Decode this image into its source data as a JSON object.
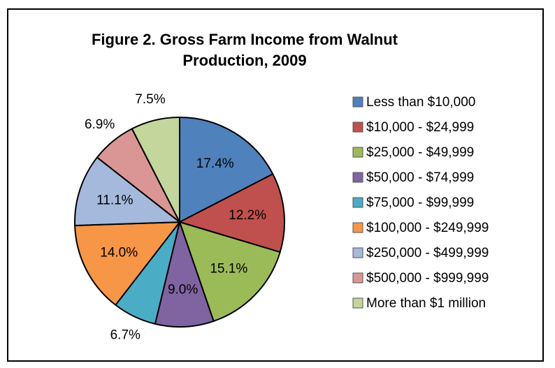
{
  "chart_data": {
    "type": "pie",
    "title": "Figure 2. Gross Farm Income from Walnut Production, 2009",
    "categories": [
      "Less than $10,000",
      "$10,000 - $24,999",
      "$25,000 - $49,999",
      "$50,000 - $74,999",
      "$75,000 - $99,999",
      "$100,000 - $249,999",
      "$250,000 - $499,999",
      "$500,000 - $999,999",
      "More than $1 million"
    ],
    "values": [
      17.4,
      12.2,
      15.1,
      9.0,
      6.7,
      14.0,
      11.1,
      6.9,
      7.5
    ],
    "value_labels": [
      "17.4%",
      "12.2%",
      "15.1%",
      "9.0%",
      "6.7%",
      "14.0%",
      "11.1%",
      "6.9%",
      "7.5%"
    ],
    "colors": [
      "#4f81bd",
      "#c0504d",
      "#9bbb59",
      "#8064a2",
      "#4bacc6",
      "#f79646",
      "#a5b9dc",
      "#d99694",
      "#c3d69b"
    ],
    "legend": "right"
  }
}
